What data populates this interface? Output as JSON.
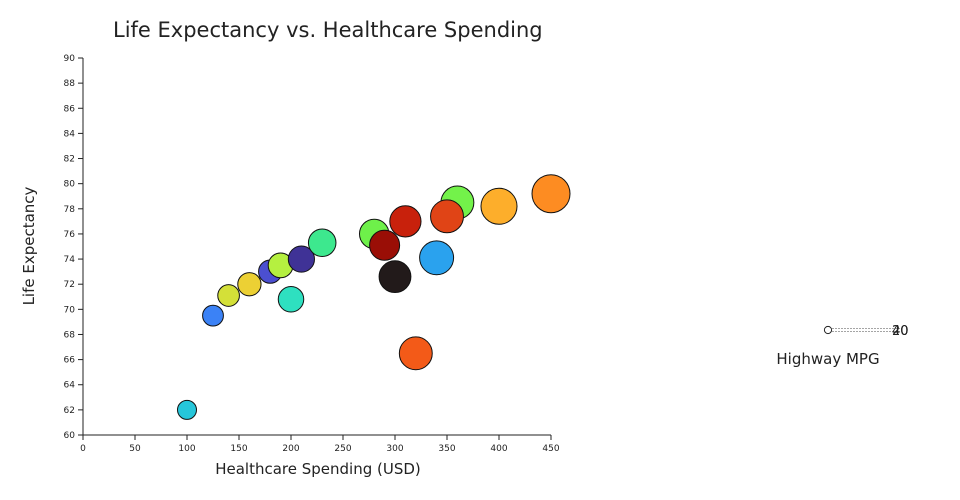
{
  "chart_data": {
    "type": "scatter",
    "variant": "bubble",
    "title": "Life Expectancy vs. Healthcare Spending",
    "xlabel": "Healthcare Spending (USD)",
    "ylabel": "Life Expectancy",
    "xlim": [
      0,
      450
    ],
    "ylim": [
      60,
      90
    ],
    "xticks": [
      0,
      50,
      100,
      150,
      200,
      250,
      300,
      350,
      400,
      450
    ],
    "yticks": [
      60,
      62,
      64,
      66,
      68,
      70,
      72,
      74,
      76,
      78,
      80,
      82,
      84,
      86,
      88,
      90
    ],
    "grid": false,
    "legend": {
      "title": "Highway MPG",
      "labels": [
        "40",
        "20"
      ],
      "placement": "right"
    },
    "points": [
      {
        "x": 100,
        "y": 62.0,
        "size": 1,
        "color": "#26c6da"
      },
      {
        "x": 125,
        "y": 69.5,
        "size": 1.2,
        "color": "#3b82f6"
      },
      {
        "x": 140,
        "y": 71.1,
        "size": 1.3,
        "color": "#d4e038"
      },
      {
        "x": 160,
        "y": 72.0,
        "size": 1.5,
        "color": "#ecd034"
      },
      {
        "x": 180,
        "y": 73.0,
        "size": 1.5,
        "color": "#4b4fd0"
      },
      {
        "x": 200,
        "y": 70.8,
        "size": 1.8,
        "color": "#2ee0c0"
      },
      {
        "x": 190,
        "y": 73.5,
        "size": 1.7,
        "color": "#b5f040"
      },
      {
        "x": 210,
        "y": 74.0,
        "size": 1.9,
        "color": "#3f3296"
      },
      {
        "x": 230,
        "y": 75.3,
        "size": 2.1,
        "color": "#3de88e"
      },
      {
        "x": 280,
        "y": 76.0,
        "size": 2.4,
        "color": "#6ef04a"
      },
      {
        "x": 300,
        "y": 72.6,
        "size": 2.8,
        "color": "#221a1a"
      },
      {
        "x": 320,
        "y": 66.5,
        "size": 3.0,
        "color": "#f35a18"
      },
      {
        "x": 340,
        "y": 74.1,
        "size": 3.2,
        "color": "#2aa2ee"
      },
      {
        "x": 360,
        "y": 78.5,
        "size": 3.0,
        "color": "#73f24a"
      },
      {
        "x": 310,
        "y": 77.0,
        "size": 2.7,
        "color": "#c8210c"
      },
      {
        "x": 350,
        "y": 77.4,
        "size": 3.0,
        "color": "#e04416"
      },
      {
        "x": 290,
        "y": 75.1,
        "size": 2.5,
        "color": "#9a0e06"
      },
      {
        "x": 400,
        "y": 78.2,
        "size": 3.6,
        "color": "#fdae2b"
      },
      {
        "x": 450,
        "y": 79.2,
        "size": 4.0,
        "color": "#fd8c22"
      }
    ]
  }
}
